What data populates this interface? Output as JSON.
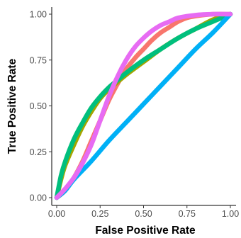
{
  "chart_data": {
    "type": "line",
    "title": "",
    "xlabel": "False Positive Rate",
    "ylabel": "True Positive Rate",
    "xlim": [
      0,
      1
    ],
    "ylim": [
      0,
      1
    ],
    "x_ticks": [
      "0.00",
      "0.25",
      "0.50",
      "0.75",
      "1.00"
    ],
    "y_ticks": [
      "0.00",
      "0.25",
      "0.50",
      "0.75",
      "1.00"
    ],
    "grid": false,
    "legend": "none",
    "reference_line": {
      "style": "dashed",
      "color": "#b3b3b3",
      "points": [
        [
          0,
          0
        ],
        [
          1,
          1
        ]
      ]
    },
    "series": [
      {
        "color": "#F8766D",
        "points": [
          [
            0,
            0
          ],
          [
            0.05,
            0.04
          ],
          [
            0.1,
            0.11
          ],
          [
            0.15,
            0.2
          ],
          [
            0.2,
            0.31
          ],
          [
            0.25,
            0.42
          ],
          [
            0.3,
            0.53
          ],
          [
            0.35,
            0.62
          ],
          [
            0.4,
            0.7
          ],
          [
            0.45,
            0.76
          ],
          [
            0.5,
            0.81
          ],
          [
            0.55,
            0.86
          ],
          [
            0.6,
            0.9
          ],
          [
            0.65,
            0.93
          ],
          [
            0.7,
            0.96
          ],
          [
            0.75,
            0.98
          ],
          [
            0.8,
            0.99
          ],
          [
            0.9,
            1
          ],
          [
            1,
            1
          ]
        ]
      },
      {
        "color": "#A3A500",
        "points": [
          [
            0,
            0
          ],
          [
            0.025,
            0.1
          ],
          [
            0.05,
            0.18
          ],
          [
            0.1,
            0.29
          ],
          [
            0.15,
            0.39
          ],
          [
            0.2,
            0.47
          ],
          [
            0.25,
            0.54
          ],
          [
            0.3,
            0.59
          ],
          [
            0.35,
            0.63
          ],
          [
            0.4,
            0.67
          ],
          [
            0.5,
            0.74
          ],
          [
            0.6,
            0.81
          ],
          [
            0.7,
            0.87
          ],
          [
            0.8,
            0.92
          ],
          [
            0.9,
            0.97
          ],
          [
            1,
            1
          ]
        ]
      },
      {
        "color": "#00BF7D",
        "points": [
          [
            0,
            0
          ],
          [
            0.025,
            0.12
          ],
          [
            0.05,
            0.2
          ],
          [
            0.1,
            0.32
          ],
          [
            0.15,
            0.41
          ],
          [
            0.2,
            0.49
          ],
          [
            0.25,
            0.55
          ],
          [
            0.3,
            0.6
          ],
          [
            0.35,
            0.64
          ],
          [
            0.4,
            0.68
          ],
          [
            0.5,
            0.75
          ],
          [
            0.6,
            0.81
          ],
          [
            0.7,
            0.87
          ],
          [
            0.8,
            0.92
          ],
          [
            0.9,
            0.96
          ],
          [
            1,
            1
          ]
        ]
      },
      {
        "color": "#00B0F6",
        "points": [
          [
            0,
            0
          ],
          [
            0.05,
            0.04
          ],
          [
            0.1,
            0.1
          ],
          [
            0.2,
            0.2
          ],
          [
            0.3,
            0.31
          ],
          [
            0.4,
            0.41
          ],
          [
            0.5,
            0.51
          ],
          [
            0.6,
            0.61
          ],
          [
            0.7,
            0.71
          ],
          [
            0.8,
            0.81
          ],
          [
            0.9,
            0.9
          ],
          [
            1,
            1
          ]
        ]
      },
      {
        "color": "#E76BF3",
        "points": [
          [
            0,
            0
          ],
          [
            0.05,
            0.05
          ],
          [
            0.1,
            0.11
          ],
          [
            0.15,
            0.19
          ],
          [
            0.2,
            0.29
          ],
          [
            0.25,
            0.42
          ],
          [
            0.3,
            0.55
          ],
          [
            0.35,
            0.66
          ],
          [
            0.4,
            0.75
          ],
          [
            0.45,
            0.82
          ],
          [
            0.5,
            0.87
          ],
          [
            0.55,
            0.91
          ],
          [
            0.6,
            0.94
          ],
          [
            0.65,
            0.96
          ],
          [
            0.7,
            0.98
          ],
          [
            0.8,
            0.995
          ],
          [
            0.9,
            1
          ],
          [
            1,
            1
          ]
        ]
      }
    ]
  }
}
